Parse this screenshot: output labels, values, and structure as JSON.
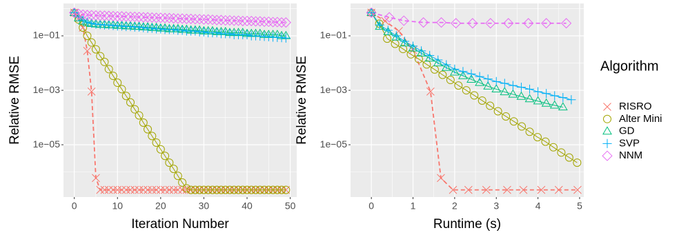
{
  "chart_data": [
    {
      "type": "line",
      "xlabel": "Iteration Number",
      "ylabel": "Relative RMSE",
      "ylog": true,
      "grid": true,
      "xlim": [
        -2.5,
        51.5
      ],
      "ylim": [
        1.2e-07,
        1.55
      ],
      "xticks": [
        0,
        10,
        20,
        30,
        40,
        50
      ],
      "yticks": [
        {
          "value": 0.1,
          "label": "1e−01"
        },
        {
          "value": 0.001,
          "label": "1e−03"
        },
        {
          "value": 1e-05,
          "label": "1e−05"
        }
      ],
      "legend": {
        "title": "Algorithm",
        "position": "right"
      },
      "x": [
        0,
        1,
        2,
        3,
        4,
        5,
        6,
        7,
        8,
        9,
        10,
        11,
        12,
        13,
        14,
        15,
        16,
        17,
        18,
        19,
        20,
        21,
        22,
        23,
        24,
        25,
        26,
        27,
        28,
        29,
        30,
        31,
        32,
        33,
        34,
        35,
        36,
        37,
        38,
        39,
        40,
        41,
        42,
        43,
        44,
        45,
        46,
        47,
        48,
        49
      ],
      "series": [
        {
          "name": "RISRO",
          "color": "#F8766D",
          "shape": "cross",
          "linetype": "dashed",
          "values": [
            0.71,
            0.45,
            0.2,
            0.028,
            0.0009,
            6e-07,
            2.2e-07,
            2.2e-07,
            2.2e-07,
            2.2e-07,
            2.2e-07,
            2.2e-07,
            2.2e-07,
            2.2e-07,
            2.2e-07,
            2.2e-07,
            2.2e-07,
            2.2e-07,
            2.2e-07,
            2.2e-07,
            2.2e-07,
            2.2e-07,
            2.2e-07,
            2.2e-07,
            2.2e-07,
            2.2e-07,
            2.2e-07,
            2.2e-07,
            2.2e-07,
            2.2e-07,
            2.2e-07,
            2.2e-07,
            2.2e-07,
            2.2e-07,
            2.2e-07,
            2.2e-07,
            2.2e-07,
            2.2e-07,
            2.2e-07,
            2.2e-07,
            2.2e-07,
            2.2e-07,
            2.2e-07,
            2.2e-07,
            2.2e-07,
            2.2e-07,
            2.2e-07,
            2.2e-07,
            2.2e-07,
            2.2e-07
          ]
        },
        {
          "name": "Alter Mini",
          "color": "#A3A500",
          "shape": "circle",
          "linetype": "solid",
          "values": [
            0.71,
            0.4,
            0.2,
            0.1,
            0.057,
            0.032,
            0.018,
            0.011,
            0.006,
            0.0034,
            0.0019,
            0.0011,
            0.00062,
            0.00036,
            0.0002,
            0.00012,
            6.5e-05,
            3.7e-05,
            2.1e-05,
            1.2e-05,
            6.8e-06,
            3.9e-06,
            2.2e-06,
            1.3e-06,
            7.2e-07,
            4.1e-07,
            2.5e-07,
            2.2e-07,
            2.2e-07,
            2.2e-07,
            2.2e-07,
            2.2e-07,
            2.2e-07,
            2.2e-07,
            2.2e-07,
            2.2e-07,
            2.2e-07,
            2.2e-07,
            2.2e-07,
            2.2e-07,
            2.2e-07,
            2.2e-07,
            2.2e-07,
            2.2e-07,
            2.2e-07,
            2.2e-07,
            2.2e-07,
            2.2e-07,
            2.2e-07,
            2.2e-07
          ]
        },
        {
          "name": "GD",
          "color": "#00BF7D",
          "shape": "triangle",
          "linetype": "solid",
          "values": [
            0.71,
            0.45,
            0.34,
            0.3,
            0.28,
            0.27,
            0.26,
            0.26,
            0.25,
            0.25,
            0.24,
            0.24,
            0.23,
            0.23,
            0.22,
            0.22,
            0.21,
            0.21,
            0.2,
            0.2,
            0.19,
            0.19,
            0.18,
            0.18,
            0.18,
            0.17,
            0.17,
            0.16,
            0.16,
            0.16,
            0.15,
            0.15,
            0.15,
            0.14,
            0.14,
            0.14,
            0.13,
            0.13,
            0.13,
            0.13,
            0.12,
            0.12,
            0.12,
            0.12,
            0.11,
            0.11,
            0.11,
            0.11,
            0.1,
            0.1
          ]
        },
        {
          "name": "SVP",
          "color": "#00B0F6",
          "shape": "plus",
          "linetype": "solid",
          "values": [
            0.71,
            0.5,
            0.38,
            0.32,
            0.29,
            0.27,
            0.26,
            0.25,
            0.25,
            0.24,
            0.23,
            0.23,
            0.22,
            0.22,
            0.21,
            0.21,
            0.2,
            0.19,
            0.19,
            0.18,
            0.18,
            0.17,
            0.17,
            0.17,
            0.16,
            0.16,
            0.15,
            0.15,
            0.15,
            0.14,
            0.14,
            0.13,
            0.13,
            0.13,
            0.12,
            0.12,
            0.12,
            0.11,
            0.11,
            0.11,
            0.11,
            0.1,
            0.1,
            0.098,
            0.095,
            0.093,
            0.09,
            0.088,
            0.086,
            0.083
          ]
        },
        {
          "name": "NNM",
          "color": "#E76BF3",
          "shape": "diamond",
          "linetype": "dashed",
          "values": [
            0.71,
            0.64,
            0.6,
            0.58,
            0.57,
            0.56,
            0.55,
            0.55,
            0.54,
            0.53,
            0.52,
            0.52,
            0.51,
            0.5,
            0.5,
            0.49,
            0.48,
            0.48,
            0.47,
            0.46,
            0.46,
            0.45,
            0.45,
            0.44,
            0.43,
            0.43,
            0.42,
            0.42,
            0.41,
            0.41,
            0.4,
            0.4,
            0.39,
            0.38,
            0.38,
            0.37,
            0.37,
            0.36,
            0.36,
            0.35,
            0.35,
            0.35,
            0.34,
            0.34,
            0.33,
            0.33,
            0.32,
            0.32,
            0.31,
            0.31
          ]
        }
      ]
    },
    {
      "type": "line",
      "xlabel": "Runtime (s)",
      "ylabel": "Relative RMSE",
      "ylog": true,
      "grid": true,
      "xlim": [
        -0.5,
        5.1
      ],
      "ylim": [
        1.2e-07,
        1.55
      ],
      "xticks": [
        0,
        1,
        2,
        3,
        4,
        5
      ],
      "yticks": [
        {
          "value": 0.1,
          "label": "1e−01"
        },
        {
          "value": 0.001,
          "label": "1e−03"
        },
        {
          "value": 1e-05,
          "label": "1e−05"
        }
      ],
      "series": [
        {
          "name": "RISRO",
          "color": "#F8766D",
          "shape": "cross",
          "linetype": "dashed",
          "x": [
            0,
            0.33,
            0.66,
            1.0,
            1.42,
            1.67,
            1.96,
            2.33,
            2.76,
            3.26,
            3.65,
            4.08,
            4.5,
            4.95
          ],
          "values": [
            0.71,
            0.35,
            0.15,
            0.03,
            0.0009,
            6e-07,
            2.2e-07,
            2.2e-07,
            2.2e-07,
            2.2e-07,
            2.2e-07,
            2.2e-07,
            2.2e-07,
            2.2e-07
          ]
        },
        {
          "name": "Alter Mini",
          "color": "#A3A500",
          "shape": "circle",
          "linetype": "solid",
          "x": [
            0,
            0.19,
            0.38,
            0.57,
            0.76,
            0.95,
            1.14,
            1.33,
            1.52,
            1.71,
            1.9,
            2.09,
            2.28,
            2.47,
            2.66,
            2.85,
            3.04,
            3.23,
            3.42,
            3.61,
            3.8,
            3.99,
            4.18,
            4.37,
            4.56,
            4.75,
            4.94
          ],
          "values": [
            0.71,
            0.28,
            0.079,
            0.051,
            0.033,
            0.021,
            0.014,
            0.0089,
            0.0058,
            0.0037,
            0.0024,
            0.0015,
            0.001,
            0.00065,
            0.00042,
            0.00027,
            0.00017,
            0.00011,
            7.2e-05,
            4.7e-05,
            3e-05,
            1.9e-05,
            1.3e-05,
            8.1e-06,
            5.2e-06,
            3.4e-06,
            2.2e-06
          ]
        },
        {
          "name": "GD",
          "color": "#00BF7D",
          "shape": "triangle",
          "linetype": "solid",
          "x": [
            0,
            0.2,
            0.4,
            0.6,
            0.8,
            1.0,
            1.2,
            1.4,
            1.6,
            1.8,
            2.0,
            2.2,
            2.4,
            2.6,
            2.8,
            3.0,
            3.2,
            3.4,
            3.6,
            3.8,
            4.0,
            4.2,
            4.4,
            4.6
          ],
          "values": [
            0.71,
            0.22,
            0.14,
            0.089,
            0.054,
            0.035,
            0.023,
            0.015,
            0.01,
            0.0068,
            0.0046,
            0.0034,
            0.0025,
            0.0019,
            0.0014,
            0.0011,
            0.00087,
            0.00071,
            0.00059,
            0.00048,
            0.0004,
            0.00033,
            0.00028,
            0.00024
          ]
        },
        {
          "name": "SVP",
          "color": "#00B0F6",
          "shape": "plus",
          "linetype": "solid",
          "x": [
            0,
            0.2,
            0.4,
            0.6,
            0.8,
            1.0,
            1.2,
            1.4,
            1.6,
            1.8,
            2.0,
            2.2,
            2.4,
            2.6,
            2.8,
            3.0,
            3.2,
            3.4,
            3.6,
            3.8,
            4.0,
            4.2,
            4.4,
            4.6,
            4.8
          ],
          "values": [
            0.71,
            0.25,
            0.16,
            0.1,
            0.063,
            0.042,
            0.028,
            0.019,
            0.013,
            0.0087,
            0.006,
            0.0049,
            0.004,
            0.0032,
            0.0026,
            0.0021,
            0.0018,
            0.0015,
            0.0013,
            0.0011,
            0.00089,
            0.00076,
            0.00063,
            0.00054,
            0.00045
          ]
        },
        {
          "name": "NNM",
          "color": "#E76BF3",
          "shape": "diamond",
          "linetype": "dashed",
          "x": [
            0,
            0.43,
            0.78,
            1.25,
            1.68,
            2.03,
            2.43,
            2.86,
            3.29,
            3.77,
            4.2,
            4.68
          ],
          "values": [
            0.71,
            0.48,
            0.36,
            0.31,
            0.31,
            0.29,
            0.29,
            0.29,
            0.29,
            0.29,
            0.29,
            0.29
          ]
        }
      ]
    }
  ]
}
